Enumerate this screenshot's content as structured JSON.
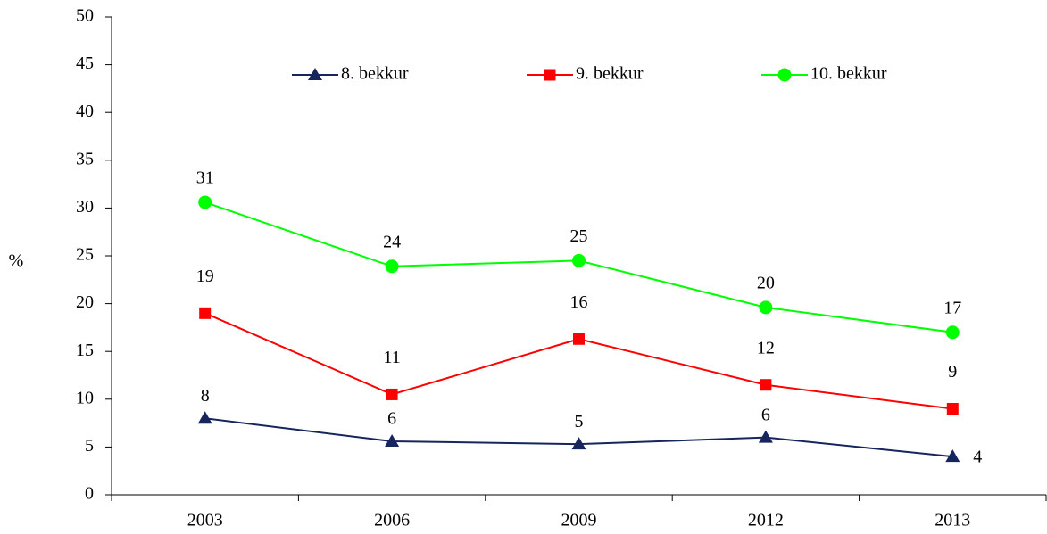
{
  "chart_data": {
    "type": "line",
    "ylabel": "%",
    "categories": [
      "2003",
      "2006",
      "2009",
      "2012",
      "2013"
    ],
    "series": [
      {
        "name": "8. bekkur",
        "color": "#17255e",
        "marker": "triangle",
        "values": [
          8,
          5.6,
          5.3,
          6,
          4
        ],
        "value_labels": [
          "8",
          "6",
          "5",
          "6",
          "4"
        ]
      },
      {
        "name": "9. bekkur",
        "color": "#ff0000",
        "marker": "square",
        "values": [
          19,
          10.5,
          16.3,
          11.5,
          9
        ],
        "value_labels": [
          "19",
          "11",
          "16",
          "12",
          "9"
        ]
      },
      {
        "name": "10. bekkur",
        "color": "#00ff00",
        "marker": "circle",
        "values": [
          30.6,
          23.9,
          24.5,
          19.6,
          17
        ],
        "value_labels": [
          "31",
          "24",
          "25",
          "20",
          "17"
        ]
      }
    ],
    "ylim": [
      0,
      50
    ],
    "yticks": [
      0,
      5,
      10,
      15,
      20,
      25,
      30,
      35,
      40,
      45,
      50
    ],
    "grid": false,
    "legend": "top"
  }
}
